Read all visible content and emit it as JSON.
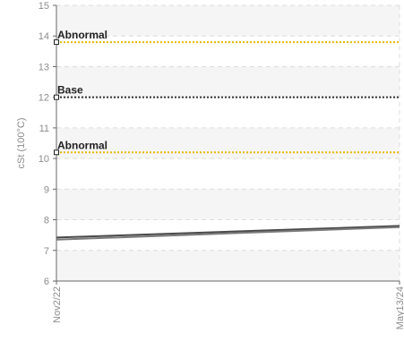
{
  "chart_data": {
    "type": "line",
    "ylabel": "cSt (100°C)",
    "xlabel": "",
    "ylim": [
      6,
      15
    ],
    "y_ticks": [
      6,
      7,
      8,
      9,
      10,
      11,
      12,
      13,
      14,
      15
    ],
    "x_categories": [
      "Nov2/22",
      "May13/24"
    ],
    "grid": true,
    "series": [
      {
        "x": [
          "Nov2/22",
          "May13/24"
        ],
        "y": [
          7.42,
          7.8
        ],
        "color": "#4a4a4a"
      },
      {
        "x": [
          "Nov2/22",
          "May13/24"
        ],
        "y": [
          7.35,
          7.76
        ],
        "color": "#7a7a7a"
      }
    ],
    "thresholds": [
      {
        "label": "Abnormal",
        "value": 13.8,
        "color": "#e6b800"
      },
      {
        "label": "Base",
        "value": 12.0,
        "color": "#333333"
      },
      {
        "label": "Abnormal",
        "value": 10.2,
        "color": "#e6b800"
      }
    ]
  }
}
